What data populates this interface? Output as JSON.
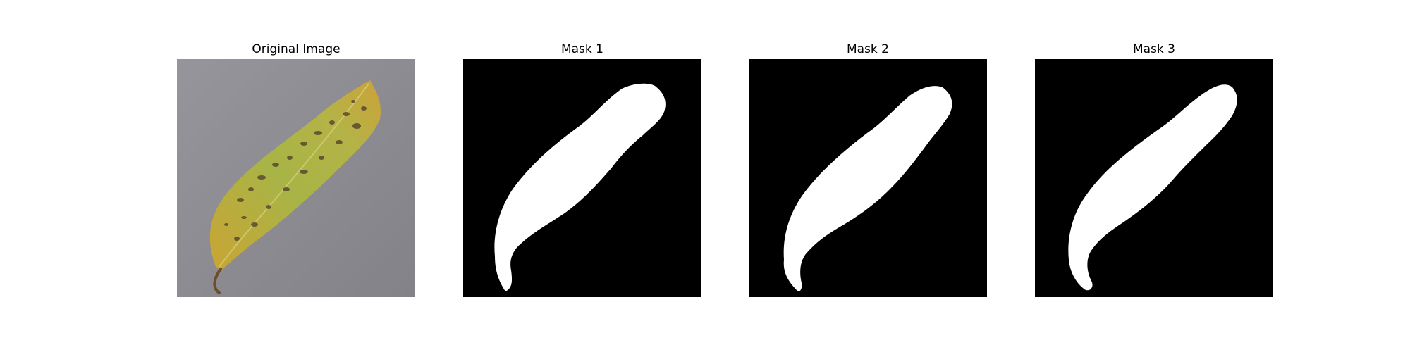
{
  "figure": {
    "panels": [
      {
        "title": "Original Image",
        "content": "leaf-photo"
      },
      {
        "title": "Mask 1",
        "content": "binary-mask"
      },
      {
        "title": "Mask 2",
        "content": "binary-mask"
      },
      {
        "title": "Mask 3",
        "content": "binary-mask"
      }
    ]
  },
  "colors": {
    "background": "#ffffff",
    "mask_background": "#000000",
    "mask_foreground": "#ffffff",
    "photo_background": "#8e8d93",
    "leaf_yellow": "#c9a534",
    "leaf_green": "#9bb14a",
    "spot": "#5a4a2c"
  }
}
